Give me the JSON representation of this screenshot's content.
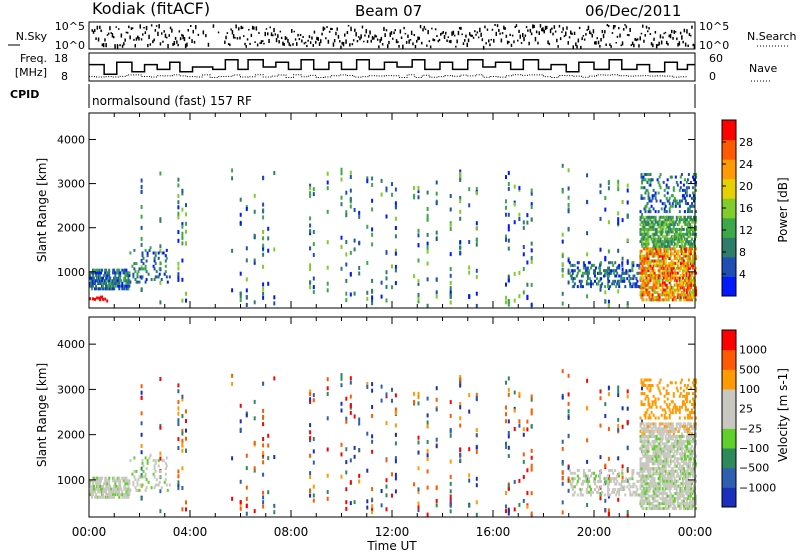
{
  "header": {
    "station": "Kodiak (fitACF)",
    "beam": "Beam 07",
    "date": "06/Dec/2011"
  },
  "summary_panels": {
    "nsky_label": "N.Sky",
    "nsky_ticks": [
      "10^5",
      "10^0"
    ],
    "nsearch_label": "N.Search",
    "nsearch_ticks": [
      "10^5",
      "10^0"
    ],
    "freq_label_line1": "Freq.",
    "freq_label_line2": "[MHz]",
    "freq_ticks": [
      "18",
      "8"
    ],
    "nave_label": "Nave",
    "nave_ticks": [
      "60",
      "0"
    ],
    "cpid_label": "CPID",
    "cpid_text": "normalsound (fast) 157 RF",
    "freq_steps": [
      [
        0.0,
        14
      ],
      [
        0.6,
        10
      ],
      [
        1.1,
        15
      ],
      [
        1.7,
        11
      ],
      [
        2.2,
        14
      ],
      [
        2.7,
        12
      ],
      [
        3.2,
        15
      ],
      [
        3.6,
        11
      ],
      [
        4.1,
        13
      ],
      [
        4.9,
        12
      ],
      [
        5.4,
        16
      ],
      [
        5.9,
        12
      ],
      [
        6.3,
        16
      ],
      [
        6.9,
        13
      ],
      [
        7.4,
        15
      ],
      [
        7.9,
        12
      ],
      [
        8.4,
        16
      ],
      [
        8.9,
        12
      ],
      [
        9.5,
        15
      ],
      [
        10.0,
        12
      ],
      [
        10.6,
        16
      ],
      [
        11.1,
        12
      ],
      [
        11.7,
        15
      ],
      [
        12.2,
        13
      ],
      [
        12.8,
        16
      ],
      [
        13.3,
        12
      ],
      [
        13.9,
        15
      ],
      [
        14.4,
        12
      ],
      [
        15.0,
        16
      ],
      [
        15.6,
        13
      ],
      [
        16.1,
        15
      ],
      [
        16.7,
        12
      ],
      [
        17.2,
        16
      ],
      [
        17.8,
        12
      ],
      [
        18.3,
        14
      ],
      [
        18.9,
        11
      ],
      [
        19.4,
        15
      ],
      [
        20.0,
        12
      ],
      [
        20.6,
        16
      ],
      [
        21.1,
        12
      ],
      [
        21.7,
        14
      ],
      [
        22.2,
        11
      ],
      [
        22.8,
        15
      ],
      [
        23.3,
        12
      ],
      [
        23.7,
        14
      ],
      [
        24.0,
        14
      ]
    ]
  },
  "chart_data": [
    {
      "type": "heatmap",
      "title": "",
      "xlabel": "",
      "ylabel": "Slant Range [km]",
      "xlim": [
        0,
        24
      ],
      "ylim": [
        180,
        4600
      ],
      "x_ticks": [
        0,
        4,
        8,
        12,
        16,
        20,
        24
      ],
      "y_ticks": [
        1000,
        2000,
        3000,
        4000
      ],
      "y_tick_labels": [
        "1000",
        "2000",
        "3000",
        "4000"
      ],
      "colorbar": {
        "label": "Power [dB]",
        "range": [
          0,
          32
        ],
        "ticks": [
          4,
          8,
          12,
          16,
          20,
          24,
          28
        ],
        "tick_labels": [
          "4",
          "8",
          "12",
          "16",
          "20",
          "24",
          "28"
        ],
        "colors": [
          "#0019ff",
          "#1f4fb4",
          "#2e7d6a",
          "#3da84a",
          "#7fcc2a",
          "#e6d000",
          "#ff9a00",
          "#ff5a00",
          "#ff0000"
        ]
      }
    },
    {
      "type": "heatmap",
      "title": "",
      "xlabel": "Time UT",
      "ylabel": "Slant Range [km]",
      "xlim": [
        0,
        24
      ],
      "ylim": [
        180,
        4600
      ],
      "x_ticks": [
        0,
        4,
        8,
        12,
        16,
        20,
        24
      ],
      "x_tick_labels": [
        "00:00",
        "04:00",
        "08:00",
        "12:00",
        "16:00",
        "20:00",
        "00:00"
      ],
      "y_ticks": [
        1000,
        2000,
        3000,
        4000
      ],
      "y_tick_labels": [
        "1000",
        "2000",
        "3000",
        "4000"
      ],
      "colorbar": {
        "label": "Velocity [m s-1]",
        "ticks": [
          1000,
          500,
          100,
          25,
          -25,
          -100,
          -500,
          -1000
        ],
        "tick_labels": [
          "1000",
          "500",
          "100",
          "25",
          "−25",
          "−100",
          "−500",
          "−1000"
        ],
        "colors": [
          "#1b2fbf",
          "#2f5fb0",
          "#2e8a5a",
          "#5fcf2a",
          "#c8c8c0",
          "#c8c8c0",
          "#ff9a00",
          "#ff5a00",
          "#ff0000"
        ]
      }
    }
  ]
}
